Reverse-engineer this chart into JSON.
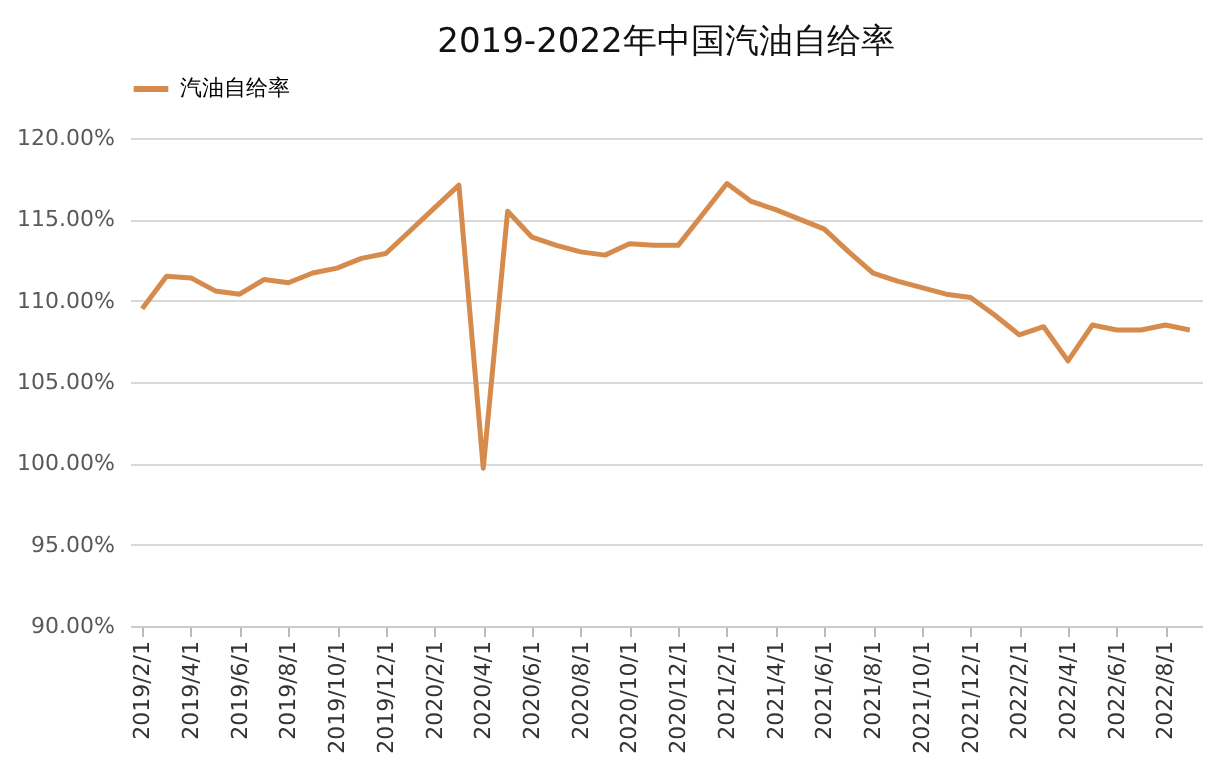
{
  "chart_data": {
    "type": "line",
    "title": "2019-2022年中国汽油自给率",
    "categories": [
      "2019/2/1",
      null,
      "2019/4/1",
      null,
      "2019/6/1",
      null,
      "2019/8/1",
      null,
      "2019/10/1",
      null,
      "2019/12/1",
      null,
      "2020/2/1",
      null,
      "2020/4/1",
      null,
      "2020/6/1",
      null,
      "2020/8/1",
      null,
      "2020/10/1",
      null,
      "2020/12/1",
      null,
      "2021/2/1",
      null,
      "2021/4/1",
      null,
      "2021/6/1",
      null,
      "2021/8/1",
      null,
      "2021/10/1",
      null,
      "2021/12/1",
      null,
      "2022/2/1",
      null,
      "2022/4/1",
      null,
      "2022/6/1",
      null,
      "2022/8/1",
      null
    ],
    "series": [
      {
        "name": "汽油自给率",
        "color": "#d68b4c",
        "values": [
          109.5,
          111.5,
          111.4,
          110.6,
          110.4,
          111.3,
          111.1,
          111.7,
          112.0,
          112.6,
          112.9,
          114.3,
          115.7,
          117.1,
          99.7,
          115.5,
          113.9,
          113.4,
          113.0,
          112.8,
          113.5,
          113.4,
          113.4,
          115.3,
          117.2,
          116.1,
          115.6,
          115.0,
          114.4,
          113.0,
          111.7,
          111.2,
          110.8,
          110.4,
          110.2,
          109.1,
          107.9,
          108.4,
          106.3,
          108.5,
          108.2,
          108.2,
          108.5,
          108.2
        ]
      }
    ],
    "ylim": [
      90,
      120
    ],
    "yticks": [
      {
        "value": 90,
        "label": "90.00%"
      },
      {
        "value": 95,
        "label": "95.00%"
      },
      {
        "value": 100,
        "label": "100.00%"
      },
      {
        "value": 105,
        "label": "105.00%"
      },
      {
        "value": 110,
        "label": "110.00%"
      },
      {
        "value": 115,
        "label": "115.00%"
      },
      {
        "value": 120,
        "label": "120.00%"
      }
    ],
    "grid": "y",
    "legend": "top",
    "marker": "none",
    "line_style": "solid"
  }
}
